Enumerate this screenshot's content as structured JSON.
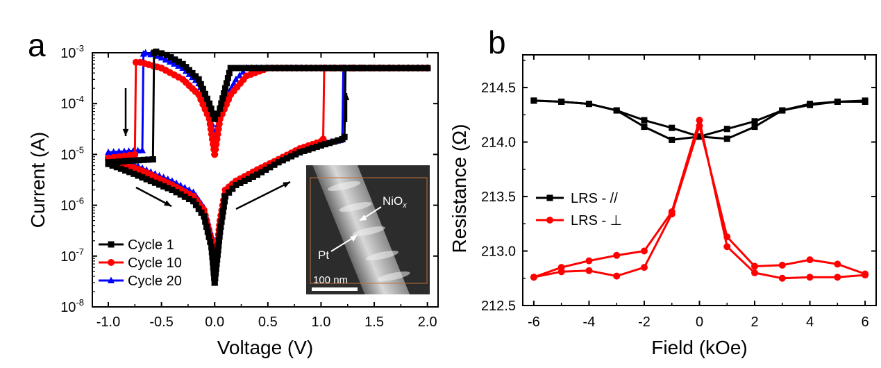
{
  "panels": {
    "a_label": "a",
    "b_label": "b"
  },
  "chart_data": [
    {
      "type": "line",
      "panel": "a",
      "xlabel": "Voltage (V)",
      "ylabel": "Current (A)",
      "xlim": [
        -1.15,
        2.1
      ],
      "ylim_log10": [
        -8,
        -3
      ],
      "yscale": "log",
      "xticks": [
        -1.0,
        -0.5,
        0.0,
        0.5,
        1.0,
        1.5,
        2.0
      ],
      "xtick_labels": [
        "-1.0",
        "-0.5",
        "0.0",
        "0.5",
        "1.0",
        "1.5",
        "2.0"
      ],
      "ytick_exponents": [
        -8,
        -7,
        -6,
        -5,
        -4,
        -3
      ],
      "ytick_base": "10",
      "legend_position": "bottom-left",
      "series": [
        {
          "name": "Cycle 1",
          "color": "#000000",
          "marker": "square",
          "hrs_up": [
            [
              0.0,
              3e-08
            ],
            [
              0.05,
              3e-07
            ],
            [
              0.1,
              1.5e-06
            ],
            [
              0.2,
              2.5e-06
            ],
            [
              0.4,
              4e-06
            ],
            [
              0.6,
              7e-06
            ],
            [
              0.8,
              1.1e-05
            ],
            [
              1.0,
              1.5e-05
            ],
            [
              1.2,
              2e-05
            ],
            [
              1.22,
              2.2e-05
            ]
          ],
          "set_jump": [
            [
              1.22,
              2.2e-05
            ],
            [
              1.23,
              0.0005
            ]
          ],
          "compliance": [
            [
              1.23,
              0.0005
            ],
            [
              2.0,
              0.0005
            ]
          ],
          "lrs_down": [
            [
              2.0,
              0.0005
            ],
            [
              0.15,
              0.0005
            ],
            [
              0.1,
              0.0002
            ],
            [
              0.05,
              8e-05
            ],
            [
              0.0,
              5e-05
            ]
          ],
          "lrs_neg": [
            [
              0.0,
              5e-05
            ],
            [
              -0.05,
              0.0001
            ],
            [
              -0.15,
              0.0003
            ],
            [
              -0.3,
              0.0006
            ],
            [
              -0.45,
              0.0009
            ],
            [
              -0.55,
              0.00105
            ],
            [
              -0.57,
              0.001
            ]
          ],
          "reset_drop": [
            [
              -0.57,
              0.001
            ],
            [
              -0.58,
              8e-06
            ]
          ],
          "hrs_neg": [
            [
              -0.58,
              8e-06
            ],
            [
              -0.8,
              7.5e-06
            ],
            [
              -1.0,
              7e-06
            ]
          ],
          "hrs_back": [
            [
              -1.0,
              6.5e-06
            ],
            [
              -0.8,
              4.5e-06
            ],
            [
              -0.6,
              3e-06
            ],
            [
              -0.4,
              2e-06
            ],
            [
              -0.2,
              1.2e-06
            ],
            [
              -0.1,
              6e-07
            ],
            [
              -0.03,
              1.5e-07
            ],
            [
              0.0,
              3e-08
            ]
          ]
        },
        {
          "name": "Cycle 10",
          "color": "#ff0000",
          "marker": "circle",
          "hrs_up": [
            [
              0.0,
              5e-08
            ],
            [
              0.05,
              5e-07
            ],
            [
              0.1,
              2e-06
            ],
            [
              0.2,
              3e-06
            ],
            [
              0.4,
              5e-06
            ],
            [
              0.6,
              8e-06
            ],
            [
              0.8,
              1.3e-05
            ],
            [
              1.0,
              1.8e-05
            ],
            [
              1.02,
              2e-05
            ]
          ],
          "set_jump": [
            [
              1.02,
              2e-05
            ],
            [
              1.03,
              0.0005
            ]
          ],
          "compliance": [
            [
              1.03,
              0.0005
            ],
            [
              2.0,
              0.0005
            ]
          ],
          "lrs_down": [
            [
              2.0,
              0.0005
            ],
            [
              0.5,
              0.0005
            ],
            [
              0.3,
              0.00035
            ],
            [
              0.15,
              0.00015
            ],
            [
              0.05,
              5e-05
            ],
            [
              0.0,
              1e-05
            ]
          ],
          "lrs_neg": [
            [
              0.0,
              1e-05
            ],
            [
              -0.05,
              5e-05
            ],
            [
              -0.15,
              0.00015
            ],
            [
              -0.3,
              0.0003
            ],
            [
              -0.5,
              0.0005
            ],
            [
              -0.7,
              0.00065
            ],
            [
              -0.74,
              0.00065
            ]
          ],
          "reset_drop": [
            [
              -0.74,
              0.00065
            ],
            [
              -0.75,
              1e-05
            ]
          ],
          "hrs_neg": [
            [
              -0.75,
              1e-05
            ],
            [
              -0.9,
              9e-06
            ],
            [
              -1.0,
              8.5e-06
            ]
          ],
          "hrs_back": [
            [
              -1.0,
              8e-06
            ],
            [
              -0.8,
              6e-06
            ],
            [
              -0.6,
              4e-06
            ],
            [
              -0.4,
              2.5e-06
            ],
            [
              -0.2,
              1.5e-06
            ],
            [
              -0.1,
              8e-07
            ],
            [
              -0.03,
              2e-07
            ],
            [
              0.0,
              5e-08
            ]
          ]
        },
        {
          "name": "Cycle 20",
          "color": "#0000ff",
          "marker": "triangle",
          "hrs_up": [
            [
              0.0,
              3e-08
            ],
            [
              0.05,
              4e-07
            ],
            [
              0.1,
              1.5e-06
            ],
            [
              0.2,
              2.6e-06
            ],
            [
              0.4,
              4.5e-06
            ],
            [
              0.6,
              7.5e-06
            ],
            [
              0.8,
              1.1e-05
            ],
            [
              1.0,
              1.6e-05
            ],
            [
              1.18,
              1.9e-05
            ],
            [
              1.2,
              2e-05
            ]
          ],
          "set_jump": [
            [
              1.2,
              2e-05
            ],
            [
              1.21,
              0.0005
            ]
          ],
          "compliance": [
            [
              1.21,
              0.0005
            ],
            [
              2.0,
              0.0005
            ]
          ],
          "lrs_down": [
            [
              2.0,
              0.0005
            ],
            [
              0.3,
              0.0005
            ],
            [
              0.2,
              0.0003
            ],
            [
              0.1,
              0.00012
            ],
            [
              0.05,
              6e-05
            ],
            [
              0.0,
              2e-05
            ]
          ],
          "lrs_neg": [
            [
              0.0,
              2e-05
            ],
            [
              -0.05,
              8e-05
            ],
            [
              -0.15,
              0.00025
            ],
            [
              -0.3,
              0.0005
            ],
            [
              -0.5,
              0.0008
            ],
            [
              -0.65,
              0.001
            ],
            [
              -0.67,
              0.00095
            ]
          ],
          "reset_drop": [
            [
              -0.67,
              0.00095
            ],
            [
              -0.68,
              1.2e-05
            ]
          ],
          "hrs_neg": [
            [
              -0.68,
              1.2e-05
            ],
            [
              -0.85,
              1.15e-05
            ],
            [
              -1.0,
              1.1e-05
            ]
          ],
          "hrs_back": [
            [
              -1.0,
              1e-05
            ],
            [
              -0.8,
              7e-06
            ],
            [
              -0.6,
              4.5e-06
            ],
            [
              -0.4,
              3e-06
            ],
            [
              -0.2,
              1.8e-06
            ],
            [
              -0.1,
              9e-07
            ],
            [
              -0.03,
              2.5e-07
            ],
            [
              0.0,
              3e-08
            ]
          ]
        }
      ],
      "inset": {
        "scale_bar": "100 nm",
        "label_oxide": "NiO",
        "label_oxide_sub": "x",
        "label_metal": "Pt"
      }
    },
    {
      "type": "line",
      "panel": "b",
      "xlabel": "Field (kOe)",
      "ylabel": "Resistance (Ω)",
      "xlim": [
        -6.4,
        6.4
      ],
      "ylim": [
        212.5,
        214.8
      ],
      "xticks": [
        -6,
        -4,
        -2,
        0,
        2,
        4,
        6
      ],
      "xtick_labels": [
        "-6",
        "-4",
        "-2",
        "0",
        "2",
        "4",
        "6"
      ],
      "yticks": [
        212.5,
        213.0,
        213.5,
        214.0,
        214.5
      ],
      "ytick_labels": [
        "212.5",
        "213.0",
        "213.5",
        "214.0",
        "214.5"
      ],
      "legend_position": "middle-left",
      "series": [
        {
          "name": "LRS - //",
          "color": "#000000",
          "marker": "square",
          "sweep_down": [
            [
              6,
              214.38
            ],
            [
              5,
              214.37
            ],
            [
              4,
              214.34
            ],
            [
              3,
              214.29
            ],
            [
              2,
              214.19
            ],
            [
              1,
              214.12
            ],
            [
              0,
              214.05
            ],
            [
              -1,
              214.02
            ],
            [
              -2,
              214.14
            ],
            [
              -3,
              214.29
            ],
            [
              -4,
              214.35
            ],
            [
              -5,
              214.37
            ],
            [
              -6,
              214.38
            ]
          ],
          "sweep_up": [
            [
              -6,
              214.38
            ],
            [
              -5,
              214.37
            ],
            [
              -4,
              214.35
            ],
            [
              -3,
              214.29
            ],
            [
              -2,
              214.2
            ],
            [
              -1,
              214.13
            ],
            [
              0,
              214.05
            ],
            [
              1,
              214.03
            ],
            [
              2,
              214.14
            ],
            [
              3,
              214.29
            ],
            [
              4,
              214.35
            ],
            [
              5,
              214.37
            ],
            [
              6,
              214.37
            ]
          ]
        },
        {
          "name": "LRS - ⊥",
          "color": "#ff0000",
          "marker": "circle",
          "sweep_down": [
            [
              6,
              212.78
            ],
            [
              5,
              212.76
            ],
            [
              4,
              212.76
            ],
            [
              3,
              212.75
            ],
            [
              2,
              212.8
            ],
            [
              1,
              213.04
            ],
            [
              0,
              214.2
            ],
            [
              -1,
              213.36
            ],
            [
              -2,
              213.0
            ],
            [
              -3,
              212.96
            ],
            [
              -4,
              212.91
            ],
            [
              -5,
              212.85
            ],
            [
              -6,
              212.76
            ]
          ],
          "sweep_up": [
            [
              -6,
              212.76
            ],
            [
              -5,
              212.81
            ],
            [
              -4,
              212.82
            ],
            [
              -3,
              212.77
            ],
            [
              -2,
              212.85
            ],
            [
              -1,
              213.34
            ],
            [
              0,
              214.15
            ],
            [
              1,
              213.13
            ],
            [
              2,
              212.86
            ],
            [
              3,
              212.87
            ],
            [
              4,
              212.92
            ],
            [
              5,
              212.88
            ],
            [
              6,
              212.79
            ]
          ]
        }
      ]
    }
  ]
}
